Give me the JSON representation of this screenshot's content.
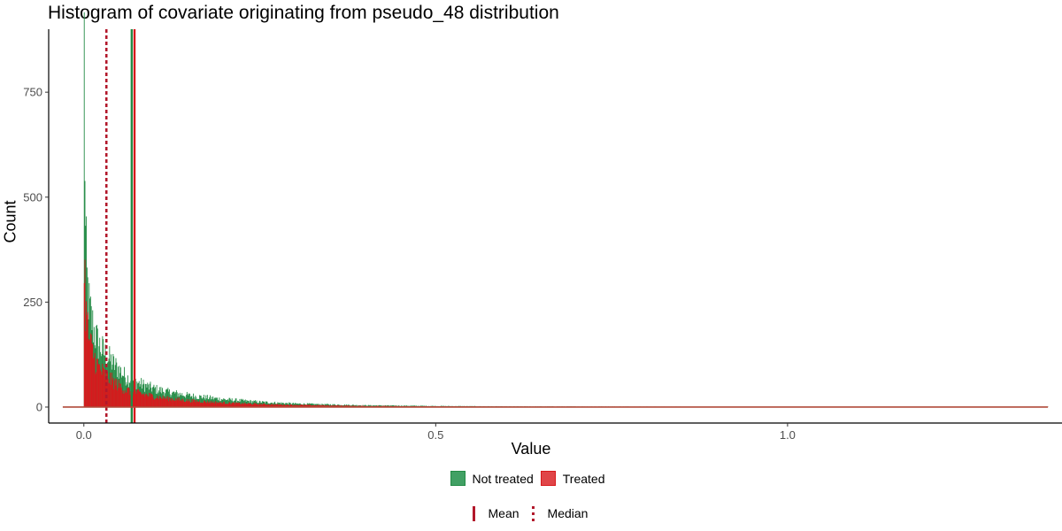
{
  "chart_data": {
    "type": "bar",
    "title": "Histogram of covariate originating from pseudo_48 distribution",
    "xlabel": "Value",
    "ylabel": "Count",
    "xlim": [
      -0.05,
      1.39
    ],
    "ylim": [
      -38,
      900
    ],
    "x_ticks": [
      0.0,
      0.5,
      1.0
    ],
    "x_tick_labels": [
      "0.0",
      "0.5",
      "1.0"
    ],
    "y_ticks": [
      0,
      250,
      500,
      750
    ],
    "y_tick_labels": [
      "0",
      "250",
      "500",
      "750"
    ],
    "grid": false,
    "legend_position": "bottom",
    "bin_width": 0.001,
    "x_start": 0.0,
    "x_end": 1.37,
    "series": [
      {
        "name": "Not treated",
        "color": "#238b45",
        "profile_points": [
          [
            0.0,
            860
          ],
          [
            0.001,
            610
          ],
          [
            0.002,
            400
          ],
          [
            0.004,
            300
          ],
          [
            0.007,
            240
          ],
          [
            0.01,
            210
          ],
          [
            0.015,
            175
          ],
          [
            0.02,
            150
          ],
          [
            0.03,
            125
          ],
          [
            0.04,
            105
          ],
          [
            0.05,
            88
          ],
          [
            0.06,
            70
          ],
          [
            0.08,
            55
          ],
          [
            0.1,
            43
          ],
          [
            0.12,
            35
          ],
          [
            0.15,
            27
          ],
          [
            0.2,
            18
          ],
          [
            0.25,
            12
          ],
          [
            0.3,
            8
          ],
          [
            0.4,
            4
          ],
          [
            0.5,
            2.5
          ],
          [
            0.6,
            1.5
          ],
          [
            0.8,
            1
          ],
          [
            1.0,
            0.5
          ],
          [
            1.37,
            0.3
          ]
        ]
      },
      {
        "name": "Treated",
        "color": "#d7191c",
        "profile_points": [
          [
            0.0,
            350
          ],
          [
            0.001,
            300
          ],
          [
            0.002,
            250
          ],
          [
            0.004,
            200
          ],
          [
            0.007,
            160
          ],
          [
            0.01,
            140
          ],
          [
            0.015,
            115
          ],
          [
            0.02,
            95
          ],
          [
            0.03,
            75
          ],
          [
            0.04,
            62
          ],
          [
            0.05,
            50
          ],
          [
            0.06,
            40
          ],
          [
            0.08,
            32
          ],
          [
            0.1,
            25
          ],
          [
            0.12,
            20
          ],
          [
            0.15,
            15
          ],
          [
            0.2,
            10
          ],
          [
            0.25,
            7
          ],
          [
            0.3,
            5
          ],
          [
            0.4,
            2.5
          ],
          [
            0.5,
            1.5
          ],
          [
            0.6,
            1
          ],
          [
            0.8,
            0.6
          ],
          [
            1.0,
            0.4
          ],
          [
            1.37,
            0.2
          ]
        ]
      }
    ],
    "reference_lines": [
      {
        "group": "Not treated",
        "stat": "Mean",
        "x": 0.068,
        "style": "solid",
        "color": "#238b45"
      },
      {
        "group": "Treated",
        "stat": "Mean",
        "x": 0.072,
        "style": "solid",
        "color": "#d7191c"
      },
      {
        "group": "All",
        "stat": "Median",
        "x": 0.032,
        "style": "dotted",
        "color": "#b2182b"
      }
    ]
  },
  "legend": {
    "fill_items": [
      {
        "label": "Not treated",
        "color": "#41a064"
      },
      {
        "label": "Treated",
        "color": "#e04548"
      }
    ],
    "line_items": [
      {
        "label": "Mean",
        "style": "solid",
        "color": "#b2182b"
      },
      {
        "label": "Median",
        "style": "dotted",
        "color": "#b2182b"
      }
    ]
  }
}
